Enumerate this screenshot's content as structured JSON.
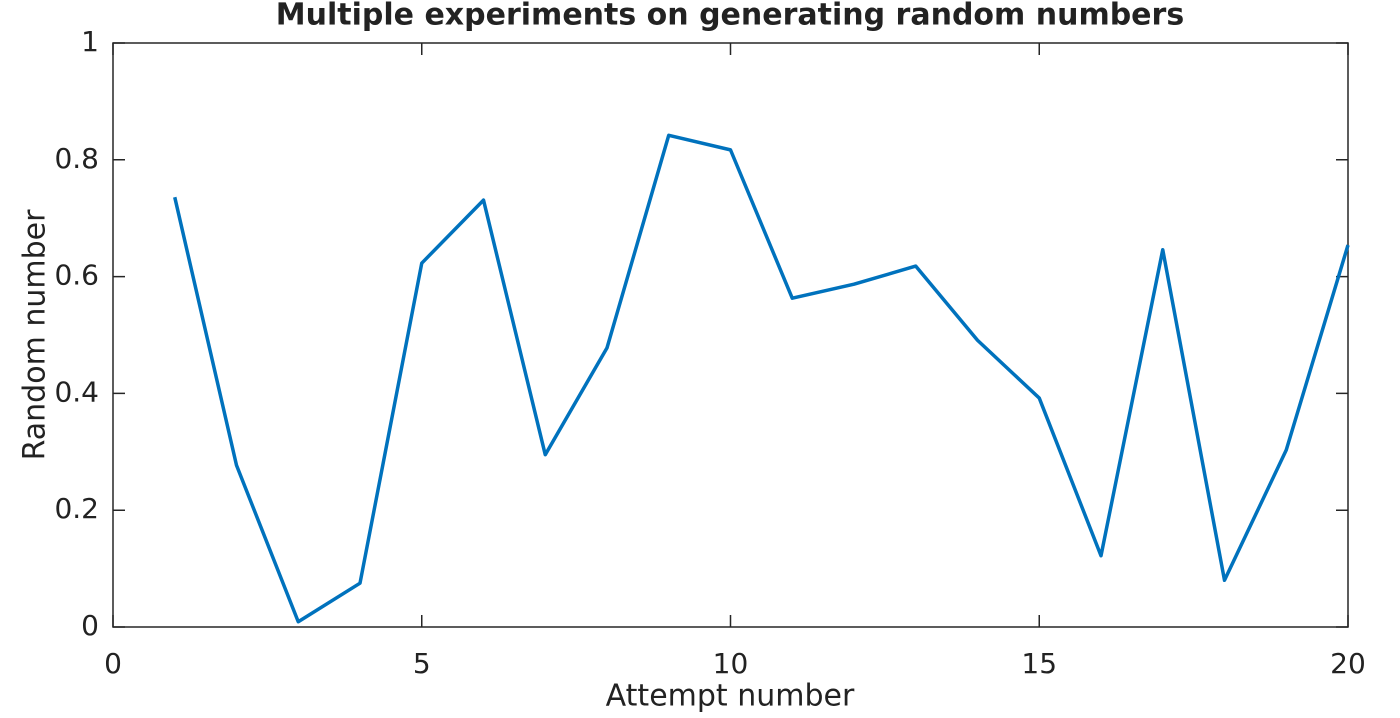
{
  "chart_data": {
    "type": "line",
    "title": "Multiple experiments on generating random numbers",
    "x_label": "Attempt number",
    "y_label": "Random number",
    "x": [
      1,
      2,
      3,
      4,
      5,
      6,
      7,
      8,
      9,
      10,
      11,
      12,
      13,
      14,
      15,
      16,
      17,
      18,
      19,
      20
    ],
    "series": [
      {
        "color": "#0072bd",
        "values": [
          0.736,
          0.277,
          0.009,
          0.075,
          0.623,
          0.731,
          0.295,
          0.478,
          0.842,
          0.817,
          0.563,
          0.587,
          0.618,
          0.491,
          0.392,
          0.122,
          0.646,
          0.08,
          0.303,
          0.654
        ]
      }
    ],
    "xlim": [
      0,
      20
    ],
    "ylim": [
      0,
      1
    ],
    "xticks": [
      0,
      5,
      10,
      15,
      20
    ],
    "yticks": [
      0,
      0.2,
      0.4,
      0.6,
      0.8,
      1
    ],
    "grid": false
  }
}
